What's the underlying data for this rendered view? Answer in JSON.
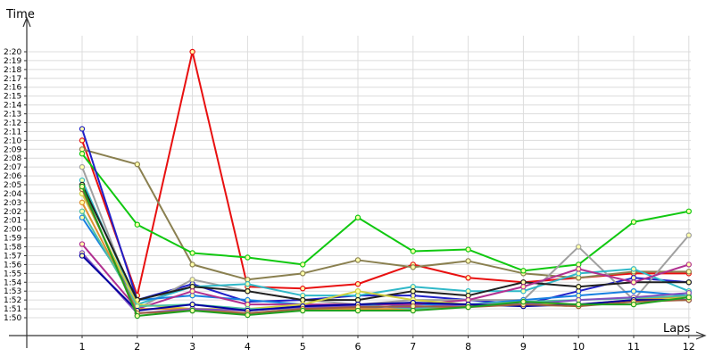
{
  "chart_data": {
    "type": "line",
    "xlabel": "Laps",
    "ylabel": "Time",
    "x": [
      1,
      2,
      3,
      4,
      5,
      6,
      7,
      8,
      9,
      10,
      11,
      12
    ],
    "ylim": [
      "1:50",
      "2:20"
    ],
    "y_ticks": [
      "1:50",
      "1:51",
      "1:52",
      "1:53",
      "1:54",
      "1:55",
      "1:56",
      "1:57",
      "1:58",
      "1:59",
      "2:00",
      "2:01",
      "2:02",
      "2:03",
      "2:04",
      "2:05",
      "2:06",
      "2:07",
      "2:08",
      "2:09",
      "2:10",
      "2:11",
      "2:12",
      "2:13",
      "2:14",
      "2:15",
      "2:16",
      "2:17",
      "2:18",
      "2:19",
      "2:20"
    ],
    "grid": "vertical lines at each lap; horizontal line at each second",
    "legend": "none",
    "series": [
      {
        "color": "#e81010",
        "values": [
          "2:10",
          "1:52.5",
          "2:20",
          "1:53.5",
          "1:53.3",
          "1:53.8",
          "1:56",
          "1:54.5",
          "1:54",
          "1:54.5",
          "1:55",
          "1:55"
        ]
      },
      {
        "color": "#8a8050",
        "values": [
          "2:09",
          "2:07.3",
          "1:56",
          "1:54.3",
          "1:55",
          "1:56.5",
          "1:55.7",
          "1:56.4",
          "1:55",
          "1:54.5",
          "1:55.2",
          "1:55.2"
        ]
      },
      {
        "color": "#10c810",
        "values": [
          "2:08.5",
          "2:00.5",
          "1:57.3",
          "1:56.8",
          "1:56",
          "2:01.3",
          "1:57.5",
          "1:57.7",
          "1:55.3",
          "1:56",
          "2:00.8",
          "2:02"
        ]
      },
      {
        "color": "#2020c8",
        "values": [
          "2:11.3",
          "1:52",
          "1:53.8",
          "1:51.8",
          "1:52",
          "1:52.5",
          "1:52.5",
          "1:52",
          "1:51.5",
          "1:53",
          "1:54.5",
          "1:54"
        ]
      },
      {
        "color": "#a0a0a0",
        "values": [
          "2:07",
          "1:51",
          "1:54.3",
          "1:53",
          "1:52",
          "1:51.5",
          "1:52",
          "1:52",
          "1:52",
          "1:58",
          "1:52",
          "1:59.3"
        ]
      },
      {
        "color": "#30b8c8",
        "values": [
          "2:05.5",
          "1:51.5",
          "1:53.5",
          "1:53.8",
          "1:52.5",
          "1:52.5",
          "1:53.5",
          "1:53",
          "1:53",
          "1:55",
          "1:55.5",
          "1:53"
        ]
      },
      {
        "color": "#1880e0",
        "values": [
          "2:01.3",
          "1:52",
          "1:52.5",
          "1:52",
          "1:51.5",
          "1:51",
          "1:51.5",
          "1:51.5",
          "1:52",
          "1:52.5",
          "1:53",
          "1:52.5"
        ]
      },
      {
        "color": "#202020",
        "values": [
          "2:05",
          "1:52",
          "1:53.5",
          "1:53",
          "1:52",
          "1:52",
          "1:53",
          "1:52.5",
          "1:54",
          "1:53.5",
          "1:54",
          "1:54"
        ]
      },
      {
        "color": "#b03090",
        "values": [
          "1:58.3",
          "1:51",
          "1:53",
          "1:51.5",
          "1:51.5",
          "1:51.5",
          "1:51.5",
          "1:52",
          "1:53.5",
          "1:55.5",
          "1:54",
          "1:56"
        ]
      },
      {
        "color": "#d0d040",
        "values": [
          "2:04",
          "1:51.5",
          "1:51",
          "1:51",
          "1:51.5",
          "1:53",
          "1:52",
          "1:51.5",
          "1:51.5",
          "1:51.5",
          "1:52",
          "1:52.3"
        ]
      },
      {
        "color": "#e09030",
        "values": [
          "2:03",
          "1:51",
          "1:51",
          "1:50.5",
          "1:51",
          "1:51",
          "1:51",
          "1:51.3",
          "1:51.5",
          "1:51.3",
          "1:52",
          "1:52.5"
        ]
      },
      {
        "color": "#50c0a0",
        "values": [
          "2:02",
          "1:51.3",
          "1:51.5",
          "1:51",
          "1:51",
          "1:51.5",
          "1:51",
          "1:51.5",
          "1:51.8",
          "1:52",
          "1:52.2",
          "1:52.5"
        ]
      },
      {
        "color": "#8050c0",
        "values": [
          "1:57.3",
          "1:50.5",
          "1:51",
          "1:50.8",
          "1:51.2",
          "1:51.3",
          "1:51.2",
          "1:51.5",
          "1:51.5",
          "1:52",
          "1:52.3",
          "1:52.8"
        ]
      },
      {
        "color": "#0000a0",
        "values": [
          "1:57",
          "1:50.8",
          "1:51.5",
          "1:50.8",
          "1:51.3",
          "1:51.5",
          "1:51.7",
          "1:51.5",
          "1:51.3",
          "1:51.5",
          "1:52",
          "1:52"
        ]
      },
      {
        "color": "#a06040",
        "values": [
          "2:04.5",
          "1:50.5",
          "1:50.8",
          "1:50.5",
          "1:51",
          "1:51.2",
          "1:51.3",
          "1:51.2",
          "1:51.5",
          "1:51.3",
          "1:51.8",
          "1:52"
        ]
      },
      {
        "color": "#20a020",
        "values": [
          "2:04.8",
          "1:50.2",
          "1:50.8",
          "1:50.3",
          "1:50.8",
          "1:50.8",
          "1:50.8",
          "1:51.2",
          "1:51.8",
          "1:51.5",
          "1:51.5",
          "1:52.3"
        ]
      }
    ]
  }
}
